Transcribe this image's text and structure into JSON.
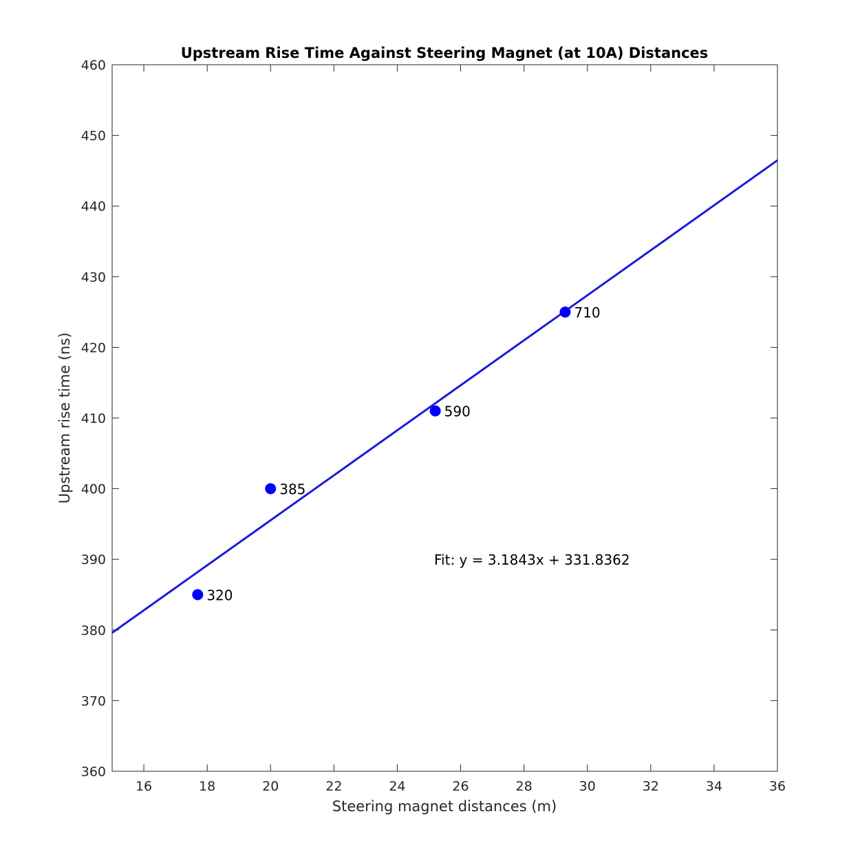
{
  "chart_data": {
    "type": "scatter",
    "title": "Upstream Rise Time Against Steering Magnet (at 10A) Distances",
    "xlabel": "Steering magnet distances (m)",
    "ylabel": "Upstream rise time (ns)",
    "xlim": [
      15,
      36
    ],
    "ylim": [
      360,
      460
    ],
    "xticks": [
      16,
      18,
      20,
      22,
      24,
      26,
      28,
      30,
      32,
      34,
      36
    ],
    "yticks": [
      360,
      370,
      380,
      390,
      400,
      410,
      420,
      430,
      440,
      450,
      460
    ],
    "grid": false,
    "points": [
      {
        "x": 17.7,
        "y": 385,
        "label": "320"
      },
      {
        "x": 20.0,
        "y": 400,
        "label": "385"
      },
      {
        "x": 25.2,
        "y": 411,
        "label": "590"
      },
      {
        "x": 29.3,
        "y": 425,
        "label": "710"
      }
    ],
    "fit": {
      "slope": 3.1843,
      "intercept": 331.8362
    },
    "fit_label": "Fit: y = 3.1843x + 331.8362",
    "color": "#0000ff",
    "fit_color": "#1a1adc"
  }
}
